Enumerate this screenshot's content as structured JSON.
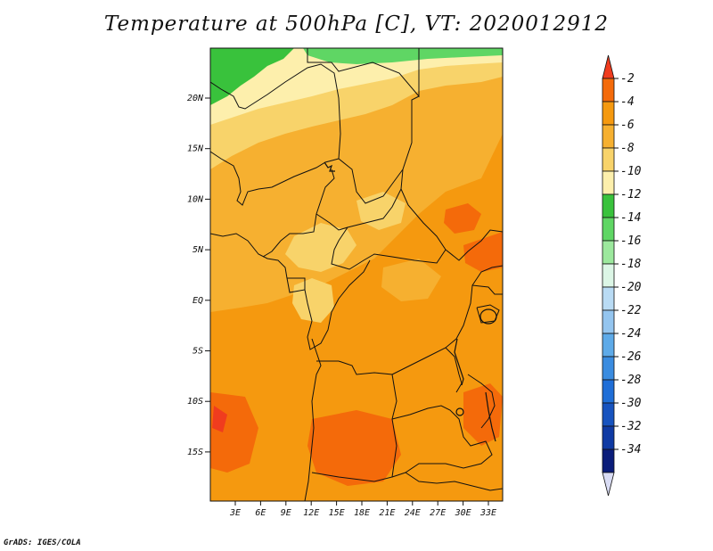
{
  "title": "Temperature at 500hPa [C], VT: 2020012912",
  "credit": "GrADS: IGES/COLA",
  "map": {
    "lat_labels": [
      "20N",
      "15N",
      "10N",
      "5N",
      "EQ",
      "5S",
      "10S",
      "15S"
    ],
    "lon_labels": [
      "3E",
      "6E",
      "9E",
      "12E",
      "15E",
      "18E",
      "21E",
      "24E",
      "27E",
      "30E",
      "33E"
    ]
  },
  "colorbar": {
    "labels": [
      "-2",
      "-4",
      "-6",
      "-8",
      "-10",
      "-12",
      "-14",
      "-16",
      "-18",
      "-20",
      "-22",
      "-24",
      "-26",
      "-28",
      "-30",
      "-32",
      "-34"
    ],
    "colors": [
      "#f03c1e",
      "#f46a0a",
      "#f5990f",
      "#f6b030",
      "#f8d36a",
      "#fdefac",
      "#39c23c",
      "#5fd664",
      "#9ce89d",
      "#dcf6e6",
      "#b9dbf4",
      "#94c5ef",
      "#5eaae8",
      "#3a8ce0",
      "#1f6ed7",
      "#1753bf",
      "#0f3aa4",
      "#0b1d7a",
      "#d9dcf4"
    ]
  },
  "colors": {
    "ocean_warm": "#f5990f",
    "warm_patch": "#f46a0a",
    "mid": "#f6b030",
    "cool": "#f8d36a",
    "cooler": "#fdefac",
    "green": "#39c23c"
  }
}
